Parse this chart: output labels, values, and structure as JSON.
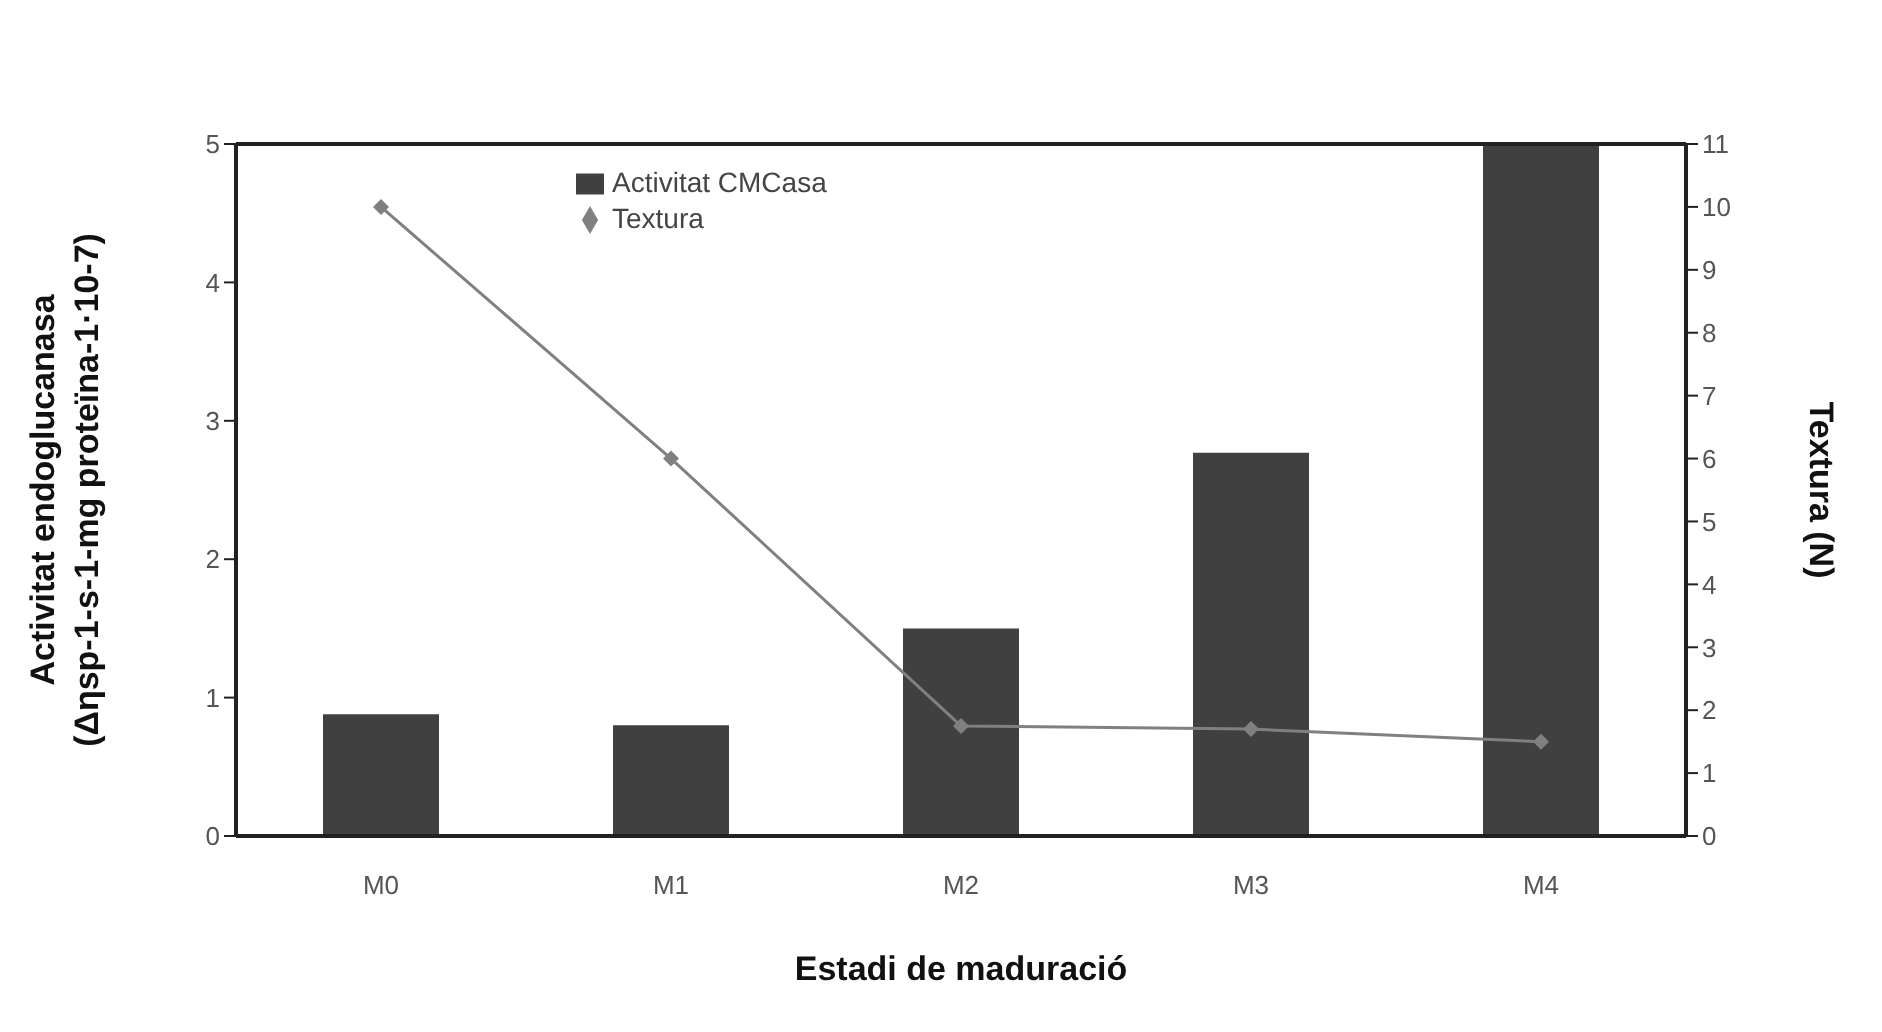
{
  "chart_data": {
    "type": "bar",
    "xlabel": "Estadi de maduració",
    "ylabel": "Activitat endoglucanasa (Δηsp-1-s-1-mg proteïna-1·10-7)",
    "y2label": "Textura (N)",
    "categories": [
      "M0",
      "M1",
      "M2",
      "M3",
      "M4"
    ],
    "series": [
      {
        "name": "Activitat CMCasa",
        "color": "#404040",
        "values": [
          0.88,
          0.8,
          1.5,
          2.77,
          5
        ]
      },
      {
        "name": "Textura",
        "type": "line",
        "axis": "y2",
        "color": "#808080",
        "marker": "diamond",
        "values": [
          10,
          6,
          1.75,
          1.7,
          1.5
        ]
      }
    ],
    "ylim": [
      0,
      5
    ],
    "yticks": [
      0,
      1,
      2,
      3,
      4,
      5
    ],
    "y2lim": [
      0,
      11
    ],
    "y2ticks": [
      0,
      1,
      2,
      3,
      4,
      5,
      6,
      7,
      8,
      9,
      10,
      11
    ],
    "grid": false,
    "legend": "top"
  }
}
